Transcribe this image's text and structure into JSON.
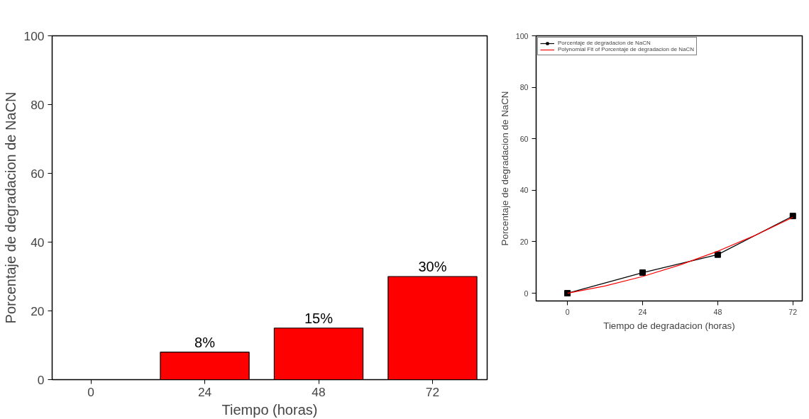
{
  "chart_data": [
    {
      "type": "bar",
      "xlabel": "Tiempo (horas)",
      "ylabel": "Porcentaje de degradacion de NaCN",
      "categories": [
        "0",
        "24",
        "48",
        "72"
      ],
      "values": [
        0,
        8,
        15,
        30
      ],
      "color": "#ff0000",
      "value_labels": [
        null,
        "8%",
        "15%",
        "30%"
      ],
      "ylim": [
        0,
        100
      ],
      "yticks": [
        0,
        20,
        40,
        60,
        80,
        100
      ],
      "grid": false
    },
    {
      "type": "line",
      "xlabel": "Tiempo de degradacion (horas)",
      "ylabel": "Porcentaje de degradacion de NaCN",
      "x": [
        0,
        24,
        48,
        72
      ],
      "series": [
        {
          "name": "Porcentaje de degradacion de NaCN",
          "color": "#000000",
          "values": [
            0,
            8,
            15,
            30
          ],
          "marker": "square"
        },
        {
          "name": "Polynomial Fit of Porcentaje de degradacion de NaCN",
          "color": "#ff0000",
          "x": [
            0,
            12,
            24,
            36,
            48,
            60,
            72
          ],
          "values": [
            0,
            2.8,
            6.5,
            11,
            16.3,
            22.5,
            29.5
          ],
          "marker": "none"
        }
      ],
      "xlim": [
        -10,
        75
      ],
      "xticks": [
        0,
        24,
        48,
        72
      ],
      "ylim": [
        -3,
        100
      ],
      "yticks": [
        0,
        20,
        40,
        60,
        80,
        100
      ],
      "grid": false,
      "legend": "top left"
    }
  ]
}
